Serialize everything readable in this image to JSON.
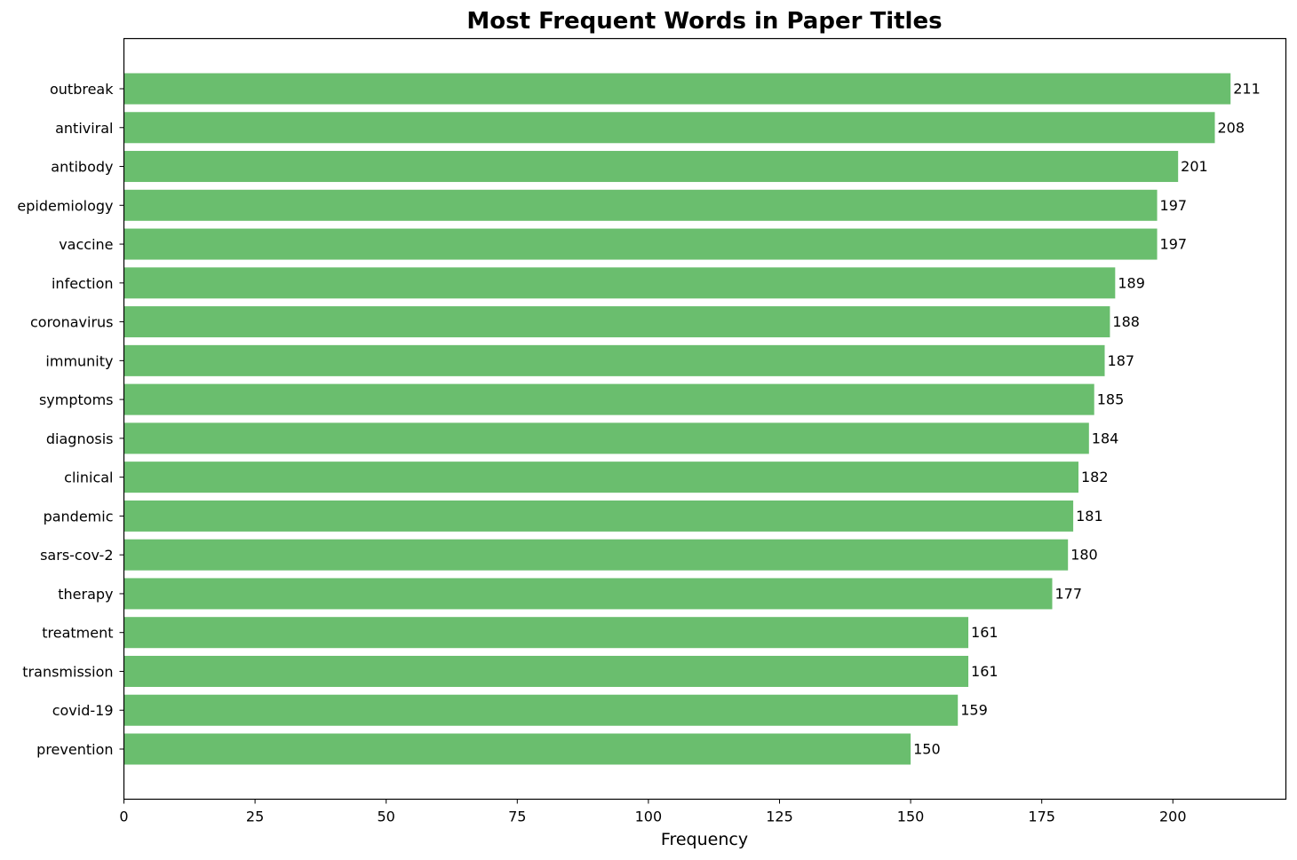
{
  "chart_data": {
    "type": "bar",
    "orientation": "horizontal",
    "title": "Most Frequent Words in Paper Titles",
    "xlabel": "Frequency",
    "ylabel": "",
    "categories": [
      "outbreak",
      "antiviral",
      "antibody",
      "epidemiology",
      "vaccine",
      "infection",
      "coronavirus",
      "immunity",
      "symptoms",
      "diagnosis",
      "clinical",
      "pandemic",
      "sars-cov-2",
      "therapy",
      "treatment",
      "transmission",
      "covid-19",
      "prevention"
    ],
    "values": [
      211,
      208,
      201,
      197,
      197,
      189,
      188,
      187,
      185,
      184,
      182,
      181,
      180,
      177,
      161,
      161,
      159,
      150
    ],
    "data_labels": [
      "211",
      "208",
      "201",
      "197",
      "197",
      "189",
      "188",
      "187",
      "185",
      "184",
      "182",
      "181",
      "180",
      "177",
      "161",
      "161",
      "159",
      "150"
    ],
    "xlim": [
      0,
      221.55
    ],
    "xticks": [
      0,
      25,
      50,
      75,
      100,
      125,
      150,
      175,
      200
    ],
    "xtick_labels": [
      "0",
      "25",
      "50",
      "75",
      "100",
      "125",
      "150",
      "175",
      "200"
    ],
    "bar_color": "#6abe6e",
    "grid": false,
    "legend": "none"
  }
}
